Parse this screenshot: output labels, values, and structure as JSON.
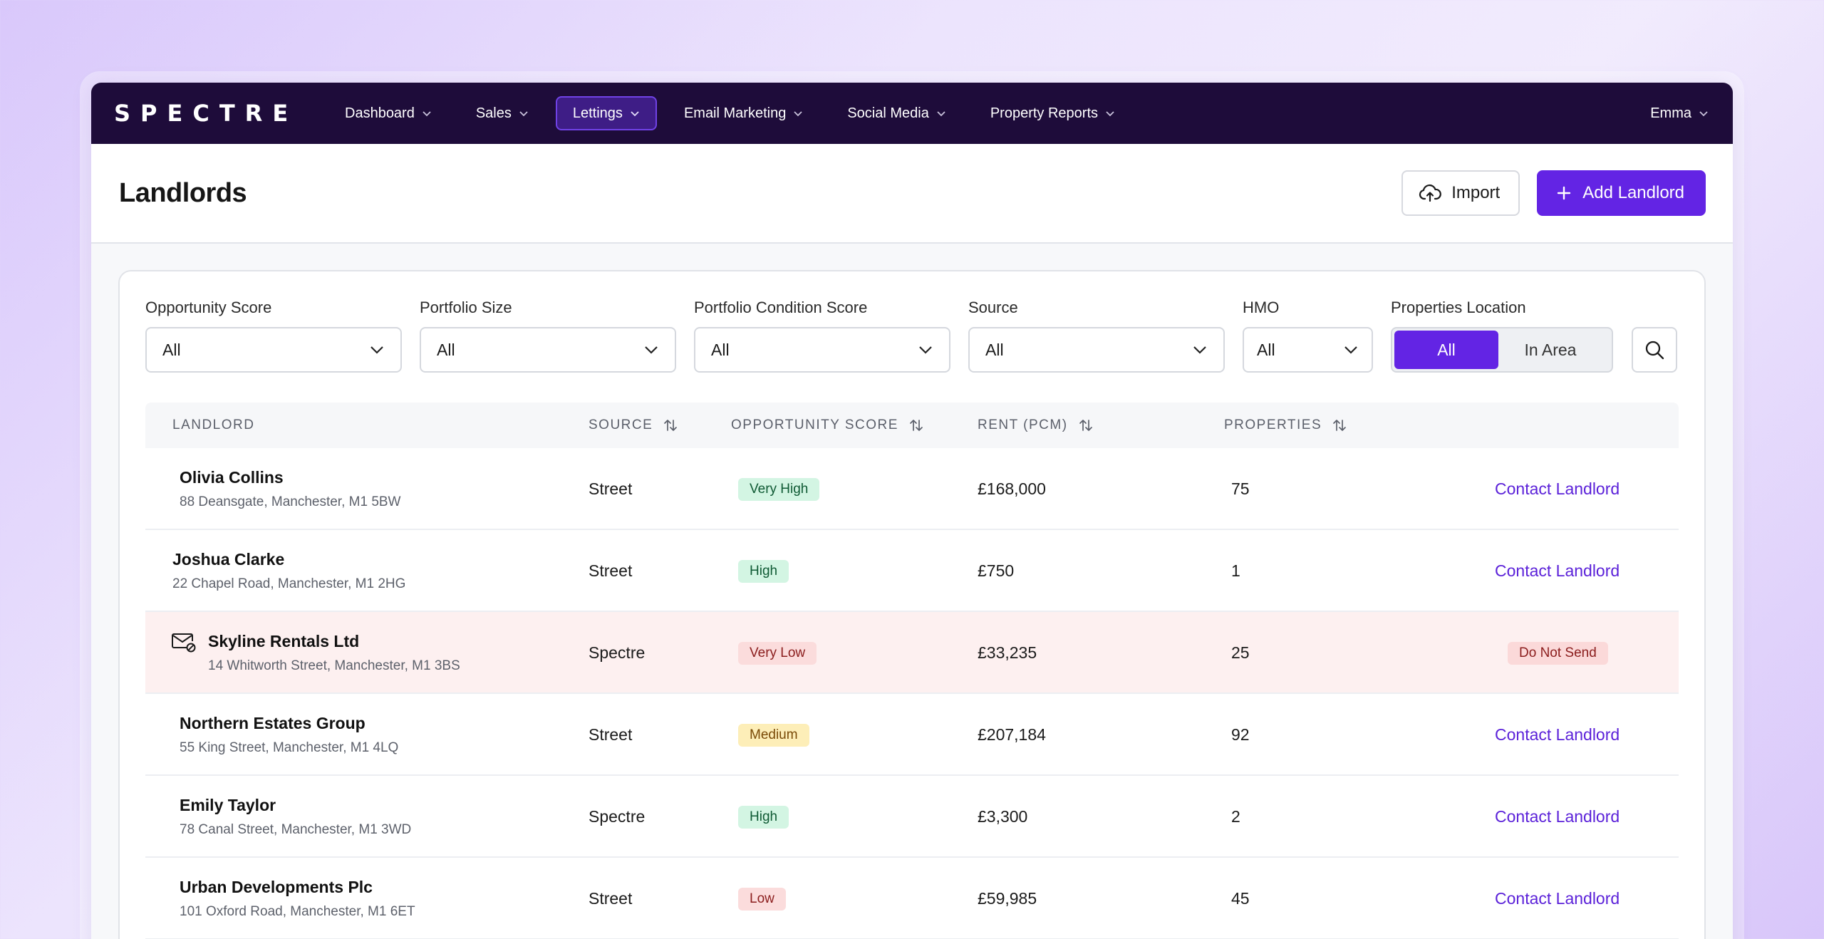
{
  "nav": {
    "logo": "SPECTRE",
    "items": [
      {
        "label": "Dashboard"
      },
      {
        "label": "Sales"
      },
      {
        "label": "Lettings",
        "active": true
      },
      {
        "label": "Email Marketing"
      },
      {
        "label": "Social Media"
      },
      {
        "label": "Property Reports"
      }
    ],
    "user": "Emma"
  },
  "header": {
    "title": "Landlords",
    "import_label": "Import",
    "add_label": "Add Landlord"
  },
  "filters": {
    "opportunity_score": {
      "label": "Opportunity Score",
      "value": "All"
    },
    "portfolio_size": {
      "label": "Portfolio Size",
      "value": "All"
    },
    "portfolio_condition": {
      "label": "Portfolio Condition Score",
      "value": "All"
    },
    "source": {
      "label": "Source",
      "value": "All"
    },
    "hmo": {
      "label": "HMO",
      "value": "All"
    },
    "location": {
      "label": "Properties Location",
      "options": [
        "All",
        "In Area"
      ],
      "selected": "All"
    }
  },
  "table": {
    "columns": {
      "landlord": "LANDLORD",
      "source": "SOURCE",
      "opportunity": "OPPORTUNITY SCORE",
      "rent": "RENT (PCM)",
      "properties": "PROPERTIES"
    },
    "rows": [
      {
        "name": "Olivia Collins",
        "address": "88 Deansgate, Manchester, M1 5BW",
        "source": "Street",
        "score": "Very High",
        "score_class": "b-vhigh",
        "rent": "£168,000",
        "properties": "75",
        "action": "Contact Landlord",
        "flagged": false
      },
      {
        "name": "Joshua Clarke",
        "address": "22 Chapel Road, Manchester, M1 2HG",
        "source": "Street",
        "score": "High",
        "score_class": "b-high",
        "rent": "£750",
        "properties": "1",
        "action": "Contact Landlord",
        "flagged": false
      },
      {
        "name": "Skyline Rentals Ltd",
        "address": "14 Whitworth Street, Manchester, M1 3BS",
        "source": "Spectre",
        "score": "Very Low",
        "score_class": "b-vlow",
        "rent": "£33,235",
        "properties": "25",
        "action": "Do Not Send",
        "flagged": true
      },
      {
        "name": "Northern Estates Group",
        "address": "55 King Street, Manchester, M1 4LQ",
        "source": "Street",
        "score": "Medium",
        "score_class": "b-medium",
        "rent": "£207,184",
        "properties": "92",
        "action": "Contact Landlord",
        "flagged": false
      },
      {
        "name": "Emily Taylor",
        "address": "78 Canal Street, Manchester, M1 3WD",
        "source": "Spectre",
        "score": "High",
        "score_class": "b-high",
        "rent": "£3,300",
        "properties": "2",
        "action": "Contact Landlord",
        "flagged": false
      },
      {
        "name": "Urban Developments Plc",
        "address": "101 Oxford Road, Manchester, M1 6ET",
        "source": "Street",
        "score": "Low",
        "score_class": "b-low",
        "rent": "£59,985",
        "properties": "45",
        "action": "Contact Landlord",
        "flagged": false
      }
    ]
  },
  "colors": {
    "nav_bg": "#1e0c3a",
    "accent": "#6324e4",
    "flagged_row": "#fdf0f0"
  }
}
